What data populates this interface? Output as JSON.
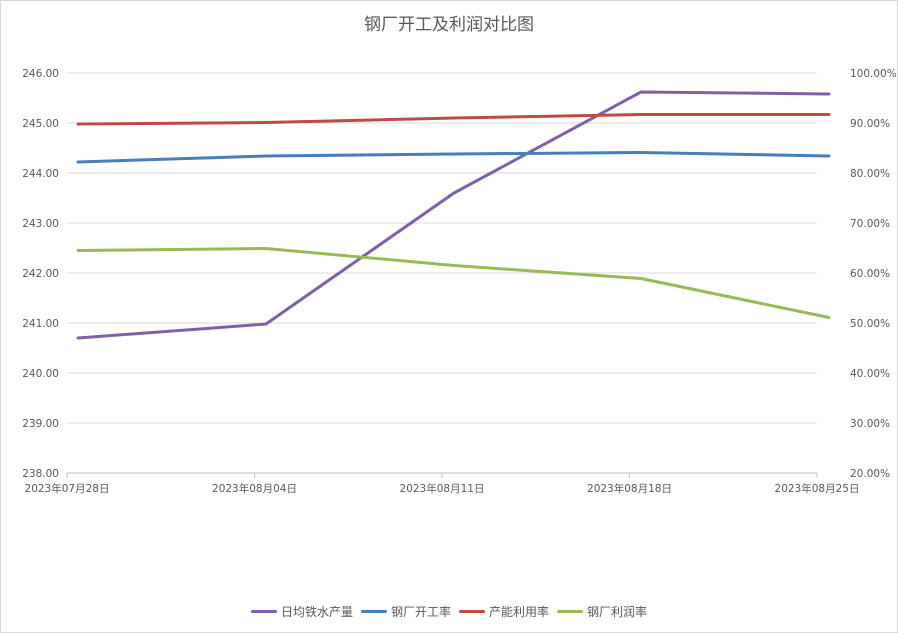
{
  "chart_data": {
    "type": "line",
    "title": "钢厂开工及利润对比图",
    "categories": [
      "2023年07月28日",
      "2023年08月04日",
      "2023年08月11日",
      "2023年08月18日",
      "2023年08月25日"
    ],
    "y_left": {
      "min": 238,
      "max": 246,
      "step": 1,
      "tick_labels": [
        "238.00",
        "239.00",
        "240.00",
        "241.00",
        "242.00",
        "243.00",
        "244.00",
        "245.00",
        "246.00"
      ]
    },
    "y_right": {
      "min": 20,
      "max": 100,
      "step": 10,
      "tick_labels": [
        "20.00%",
        "30.00%",
        "40.00%",
        "50.00%",
        "60.00%",
        "70.00%",
        "80.00%",
        "90.00%",
        "100.00%"
      ]
    },
    "grid": "horizontal",
    "legend_position": "bottom",
    "series": [
      {
        "name": "日均铁水产量",
        "axis": "left",
        "color": "#7f5fa8",
        "values": [
          240.7,
          240.98,
          243.6,
          245.62,
          245.58
        ]
      },
      {
        "name": "钢厂开工率",
        "axis": "right",
        "color": "#4a7ebb",
        "values": [
          82.2,
          83.4,
          83.8,
          84.1,
          83.4
        ]
      },
      {
        "name": "产能利用率",
        "axis": "right",
        "color": "#be4b48",
        "values": [
          89.8,
          90.1,
          91.0,
          91.7,
          91.7
        ]
      },
      {
        "name": "钢厂利润率",
        "axis": "right",
        "color": "#98b954",
        "values": [
          64.5,
          64.9,
          61.5,
          58.9,
          51.1
        ]
      }
    ]
  }
}
